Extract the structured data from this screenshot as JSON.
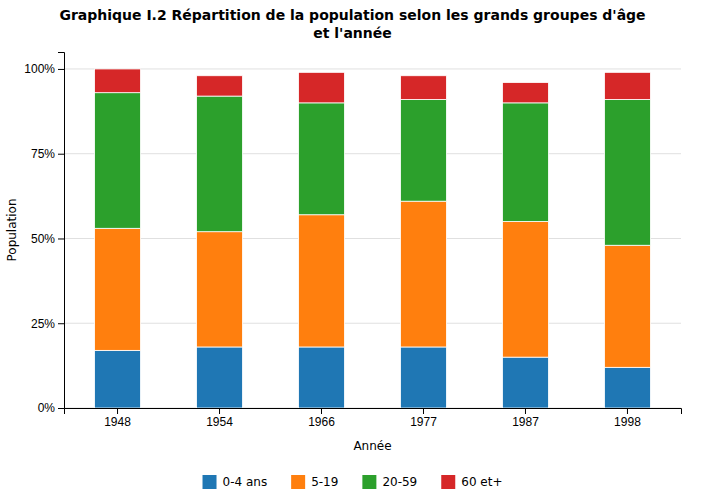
{
  "chart_data": {
    "type": "bar",
    "stacked": true,
    "title": "Graphique I.2 Répartition de la population selon les grands groupes d'âge\net l'année",
    "xlabel": "Année",
    "ylabel": "Population",
    "categories": [
      "1948",
      "1954",
      "1966",
      "1977",
      "1987",
      "1998"
    ],
    "series": [
      {
        "name": "0-4 ans",
        "values": [
          17,
          18,
          18,
          18,
          15,
          12
        ]
      },
      {
        "name": "5-19",
        "values": [
          36,
          34,
          39,
          43,
          40,
          36
        ]
      },
      {
        "name": "20-59",
        "values": [
          40,
          40,
          33,
          30,
          35,
          43
        ]
      },
      {
        "name": "60 et+",
        "values": [
          7,
          6,
          9,
          7,
          6,
          8
        ]
      }
    ],
    "ylim": [
      0,
      105
    ],
    "yticks": [
      {
        "value": 0,
        "label": "0%"
      },
      {
        "value": 25,
        "label": "25%"
      },
      {
        "value": 50,
        "label": "50%"
      },
      {
        "value": 75,
        "label": "75%"
      },
      {
        "value": 100,
        "label": "100%"
      }
    ],
    "grid": true,
    "legend": "bottom"
  }
}
